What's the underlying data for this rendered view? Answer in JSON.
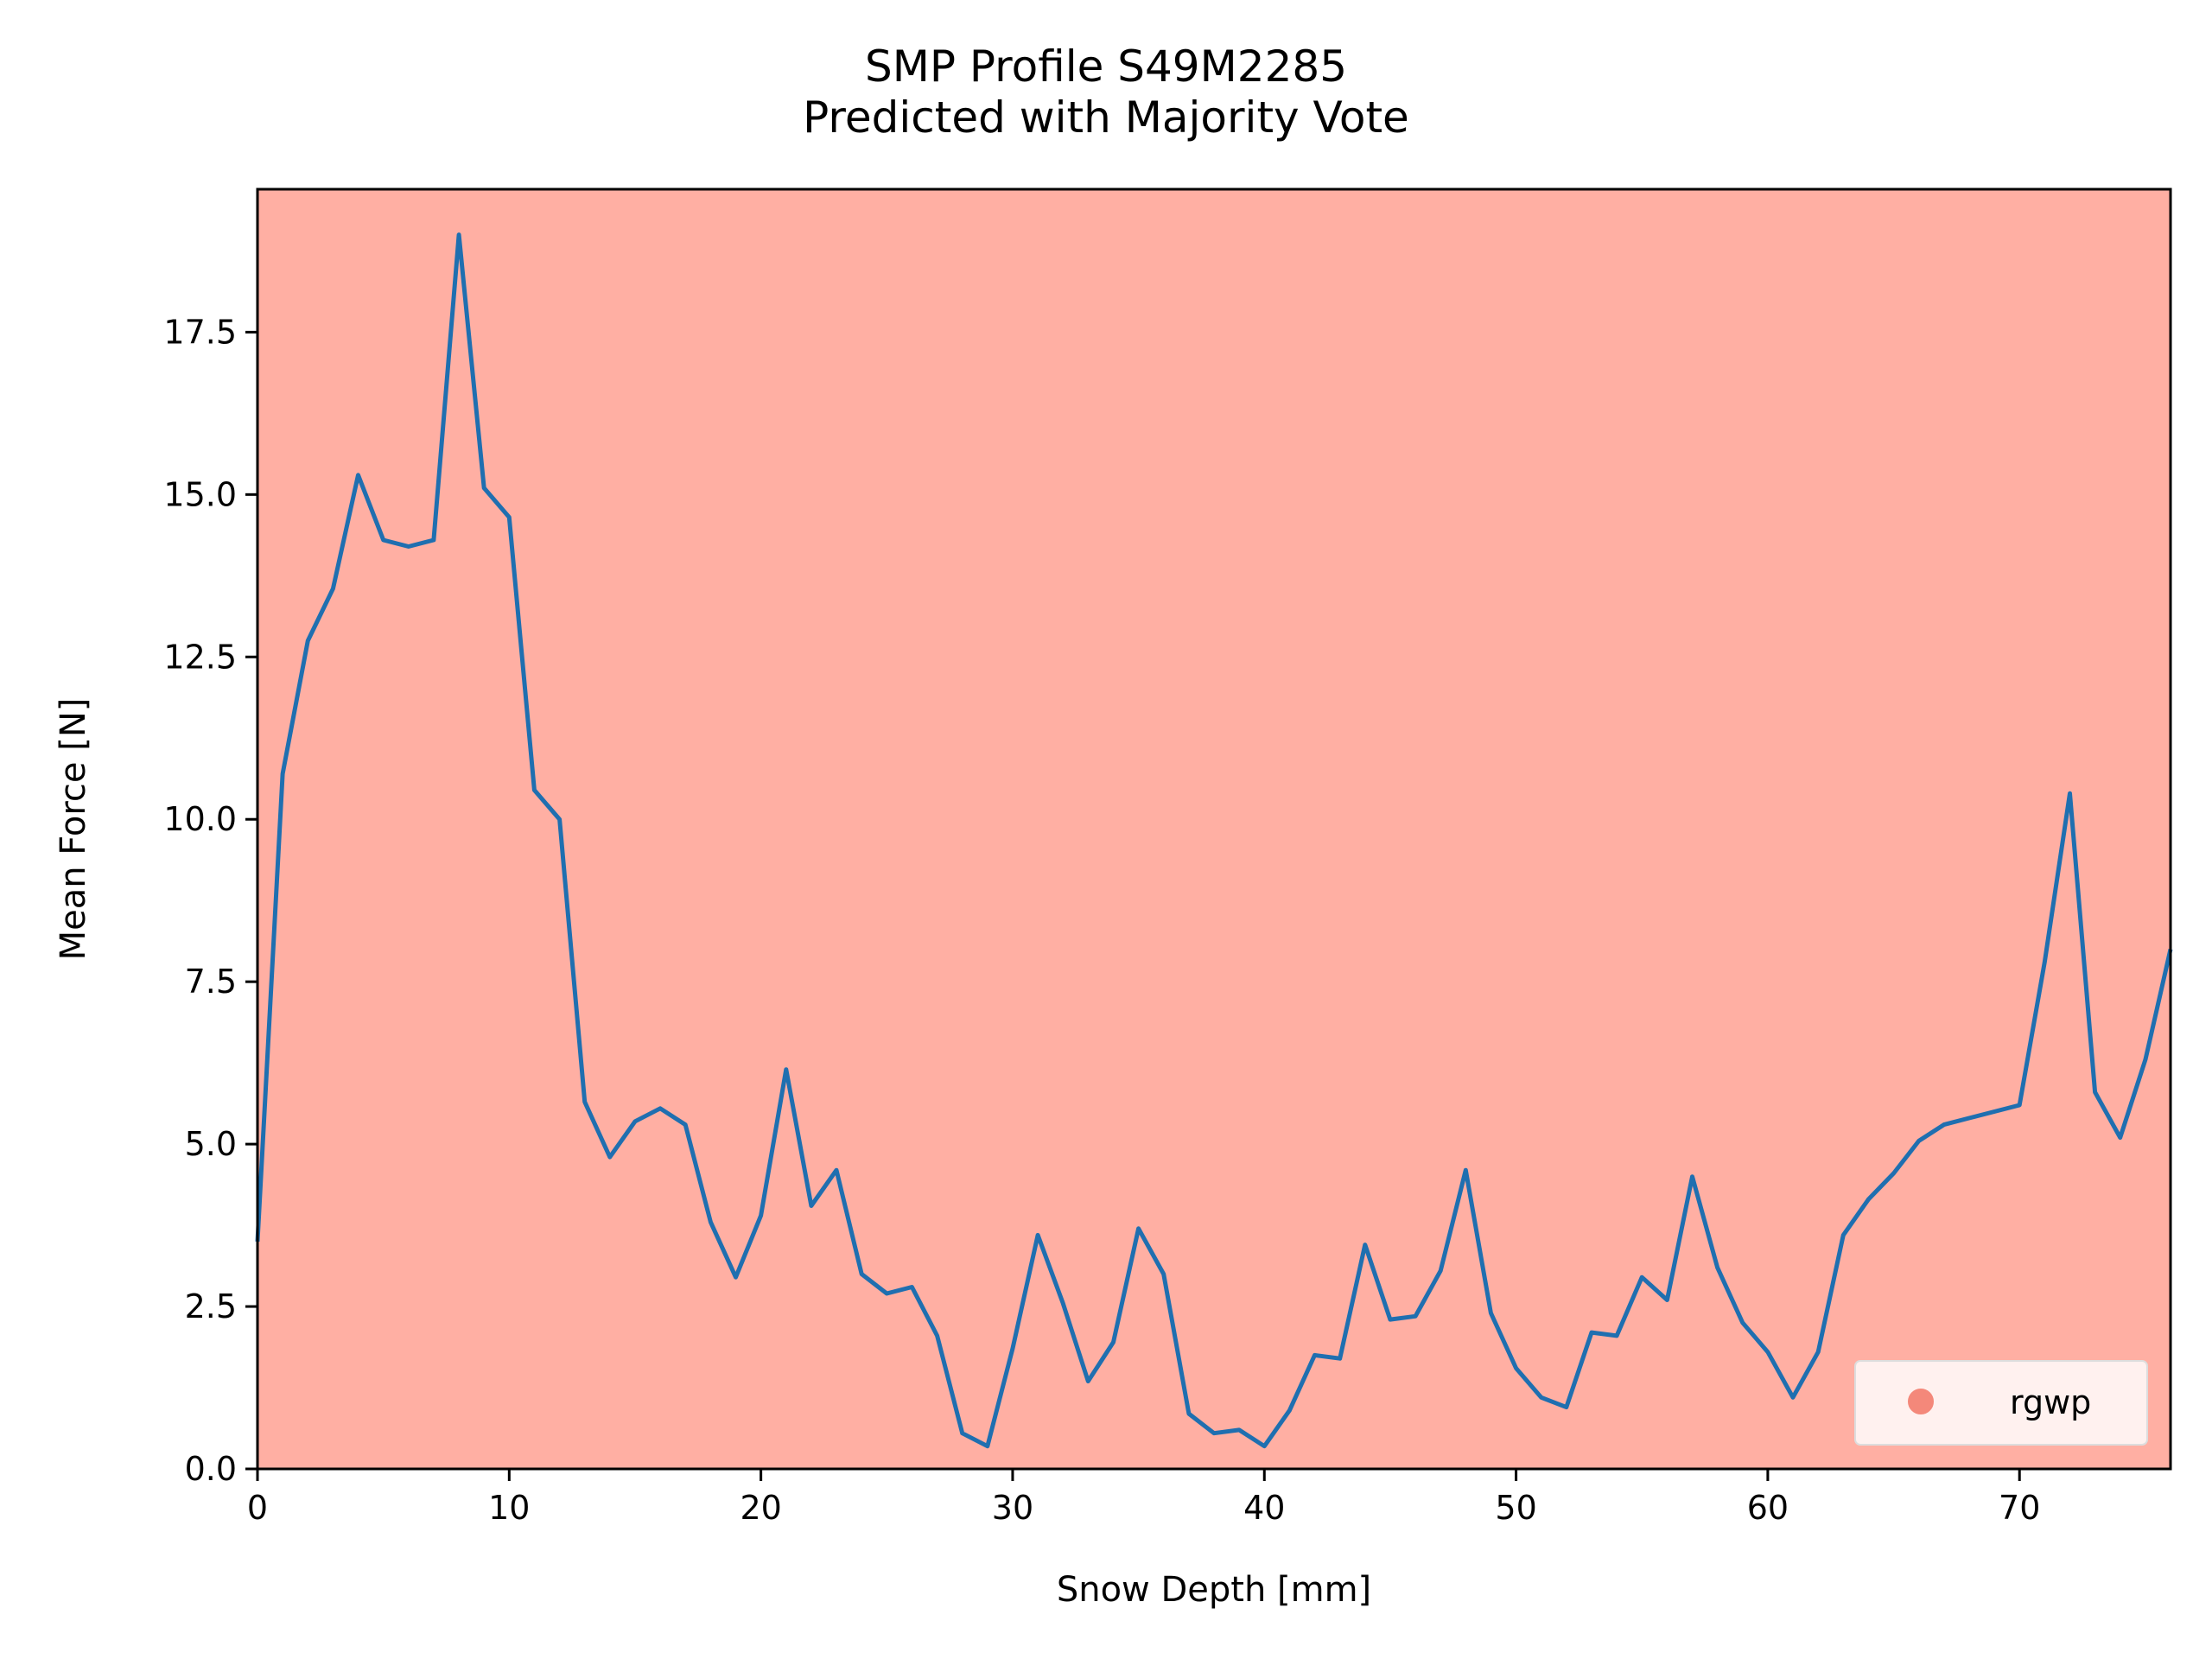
{
  "colors": {
    "background_class": "#FFAFA3",
    "line": "#1F6FB0",
    "legend_marker": "#F4887A",
    "legend_bg": "#FFF1EF"
  },
  "chart_data": {
    "type": "line",
    "title": "SMP Profile S49M2285",
    "subtitle": "Predicted with Majority Vote",
    "xlabel": "Snow Depth [mm]",
    "ylabel": "Mean Force [N]",
    "xlim": [
      0,
      76
    ],
    "ylim": [
      0,
      19.7
    ],
    "xticks": [
      0,
      10,
      20,
      30,
      40,
      50,
      60,
      70
    ],
    "xtick_labels": [
      "0",
      "10",
      "20",
      "30",
      "40",
      "50",
      "60",
      "70"
    ],
    "yticks": [
      0,
      2.5,
      5,
      7.5,
      10,
      12.5,
      15,
      17.5
    ],
    "ytick_labels": [
      "0.0",
      "2.5",
      "5.0",
      "7.5",
      "10.0",
      "12.5",
      "15.0",
      "17.5"
    ],
    "grid": false,
    "legend": {
      "position": "lower-right",
      "entries": [
        "rgwp"
      ]
    },
    "series": [
      {
        "x": [
          0,
          1,
          2,
          3,
          4,
          5,
          6,
          7,
          8,
          9,
          10,
          11,
          12,
          13,
          14,
          15,
          16,
          17,
          18,
          19,
          20,
          21,
          22,
          23,
          24,
          25,
          26,
          27,
          28,
          29,
          30,
          31,
          32,
          33,
          34,
          35,
          36,
          37,
          38,
          39,
          40,
          41,
          42,
          43,
          44,
          45,
          46,
          47,
          48,
          49,
          50,
          51,
          52,
          53,
          54,
          55,
          56,
          57,
          58,
          59,
          60,
          61,
          62,
          63,
          64,
          65,
          66,
          67,
          68,
          69,
          70,
          71,
          72,
          73,
          74,
          75,
          76
        ],
        "y": [
          3.5,
          10.7,
          12.75,
          13.55,
          15.3,
          14.3,
          14.2,
          14.3,
          19.0,
          15.1,
          14.65,
          10.45,
          10.0,
          5.65,
          4.8,
          5.35,
          5.55,
          5.3,
          3.8,
          2.95,
          3.9,
          6.15,
          4.05,
          4.6,
          3.0,
          2.7,
          2.8,
          2.05,
          0.55,
          0.35,
          1.85,
          3.6,
          2.55,
          1.35,
          1.95,
          3.7,
          3.0,
          0.85,
          0.55,
          0.6,
          0.35,
          0.9,
          1.75,
          1.7,
          3.45,
          2.3,
          2.35,
          3.05,
          4.6,
          2.4,
          1.55,
          1.1,
          0.95,
          2.1,
          2.05,
          2.95,
          2.6,
          4.5,
          3.1,
          2.25,
          1.8,
          1.1,
          1.8,
          3.6,
          4.15,
          4.55,
          5.05,
          5.3,
          5.4,
          5.5,
          5.6,
          7.8,
          10.4,
          5.8,
          5.1,
          6.3,
          8.0
        ]
      }
    ]
  }
}
